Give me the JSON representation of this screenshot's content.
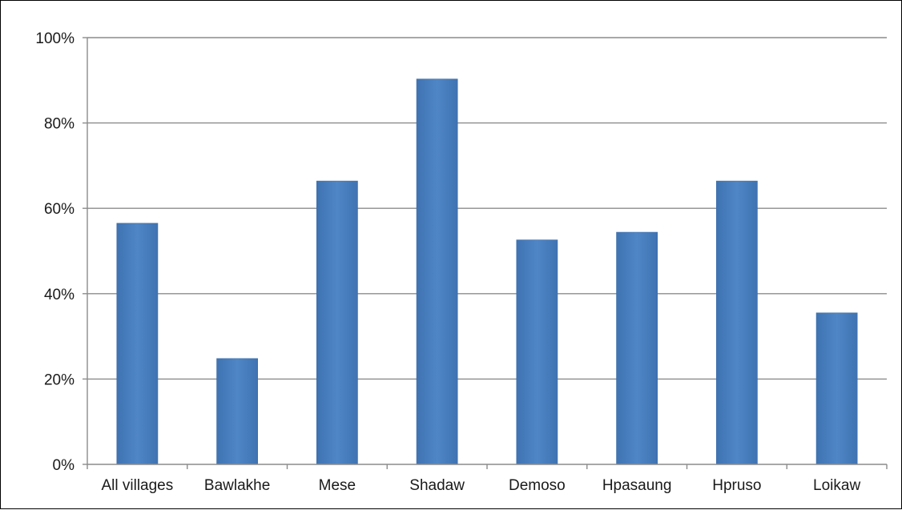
{
  "chart_data": {
    "type": "bar",
    "title": "",
    "xlabel": "",
    "ylabel": "",
    "categories": [
      "All villages",
      "Bawlakhe",
      "Mese",
      "Shadaw",
      "Demoso",
      "Hpasaung",
      "Hpruso",
      "Loikaw"
    ],
    "values": [
      56.5,
      24.8,
      66.4,
      90.3,
      52.6,
      54.4,
      66.4,
      35.5
    ],
    "ylim": [
      0,
      100
    ],
    "yticks": [
      "0%",
      "20%",
      "40%",
      "60%",
      "80%",
      "100%"
    ],
    "grid": true,
    "legend": "none",
    "colors": {
      "bar": "#4a7ebb",
      "grid": "#8c8c8c",
      "axis": "#8c8c8c",
      "text": "#1a1a1a"
    }
  }
}
